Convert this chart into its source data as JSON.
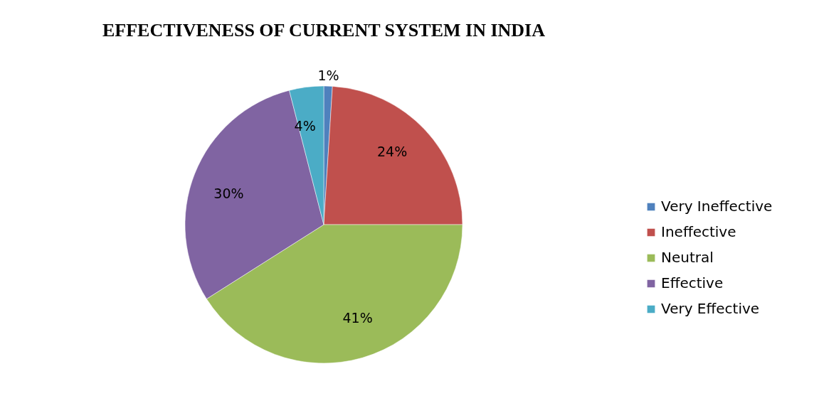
{
  "chart_data": {
    "type": "pie",
    "title": "EFFECTIVENESS OF CURRENT SYSTEM IN INDIA",
    "categories": [
      "Very Ineffective",
      "Ineffective",
      "Neutral",
      "Effective",
      "Very Effective"
    ],
    "values": [
      1,
      24,
      41,
      30,
      4
    ],
    "colors": [
      "#4f81bd",
      "#c0504d",
      "#9bbb59",
      "#8064a2",
      "#4bacc6"
    ],
    "value_labels": [
      "1%",
      "24%",
      "41%",
      "30%",
      "4%"
    ],
    "legend": "right"
  }
}
